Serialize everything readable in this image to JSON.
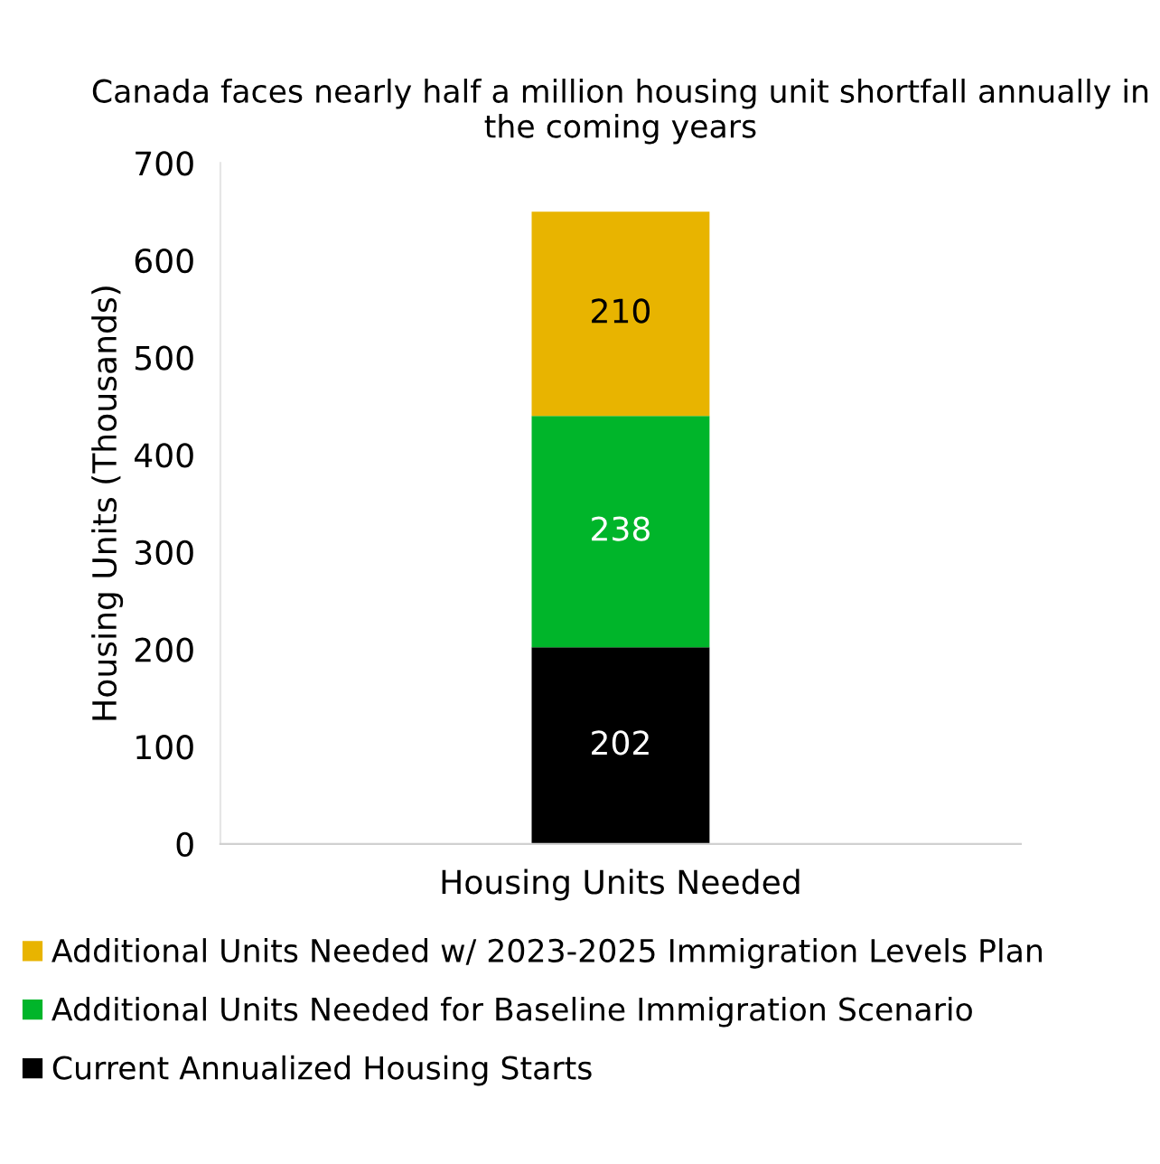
{
  "chart_data": {
    "type": "bar",
    "title": "Canada faces nearly half a million housing unit shortfall annually in the coming years",
    "ylabel": "Housing Units (Thousands)",
    "categories": [
      "Housing Units Needed"
    ],
    "stacked": true,
    "series": [
      {
        "name": "Current Annualized Housing Starts",
        "color": "#000000",
        "values": [
          202
        ]
      },
      {
        "name": "Additional Units Needed for Baseline Immigration Scenario",
        "color": "#00b52a",
        "values": [
          238
        ]
      },
      {
        "name": "Additional Units Needed w/ 2023-2025 Immigration Levels Plan",
        "color": "#e8b400",
        "values": [
          210
        ]
      }
    ],
    "ylim": [
      0,
      700
    ],
    "yticks": [
      0,
      100,
      200,
      300,
      400,
      500,
      600,
      700
    ],
    "data_labels": true,
    "grid": false,
    "legend": "bottom"
  }
}
